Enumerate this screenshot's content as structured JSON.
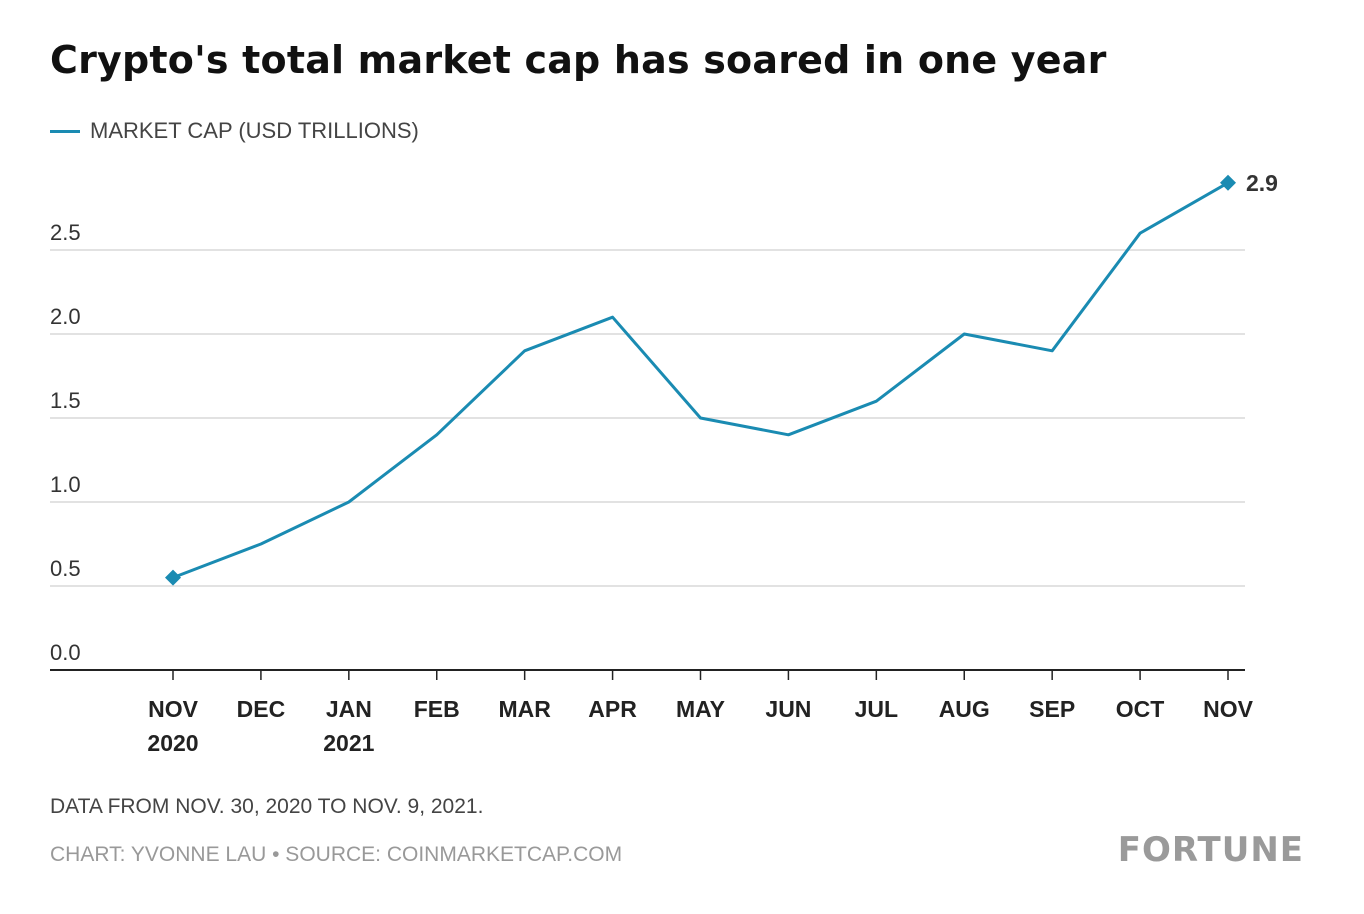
{
  "chart_data": {
    "type": "line",
    "title": "Crypto's total market cap has soared in one year",
    "xlabel": "",
    "ylabel": "",
    "categories": [
      [
        "NOV",
        "2020"
      ],
      [
        "DEC",
        ""
      ],
      [
        "JAN",
        "2021"
      ],
      [
        "FEB",
        ""
      ],
      [
        "MAR",
        ""
      ],
      [
        "APR",
        ""
      ],
      [
        "MAY",
        ""
      ],
      [
        "JUN",
        ""
      ],
      [
        "JUL",
        ""
      ],
      [
        "AUG",
        ""
      ],
      [
        "SEP",
        ""
      ],
      [
        "OCT",
        ""
      ],
      [
        "NOV",
        ""
      ]
    ],
    "series": [
      {
        "name": "MARKET CAP (USD TRILLIONS)",
        "values": [
          0.55,
          0.75,
          1.0,
          1.4,
          1.9,
          2.1,
          1.5,
          1.4,
          1.6,
          2.0,
          1.9,
          2.6,
          2.9
        ],
        "color": "#1a8bb2"
      }
    ],
    "ylim": [
      0,
      2.9
    ],
    "yticks": [
      0.0,
      0.5,
      1.0,
      1.5,
      2.0,
      2.5
    ],
    "ytick_labels": [
      "0.0",
      "0.5",
      "1.0",
      "1.5",
      "2.0",
      "2.5"
    ],
    "end_label": "2.9",
    "grid": true,
    "legend_position": "top-left"
  },
  "note": "DATA FROM NOV. 30, 2020 TO NOV. 9, 2021.",
  "credit": "CHART: YVONNE LAU • SOURCE: COINMARKETCAP.COM",
  "brand": "FORTUNE",
  "colors": {
    "line": "#1a8bb2",
    "grid": "#d9d9d9",
    "axis": "#222222"
  }
}
